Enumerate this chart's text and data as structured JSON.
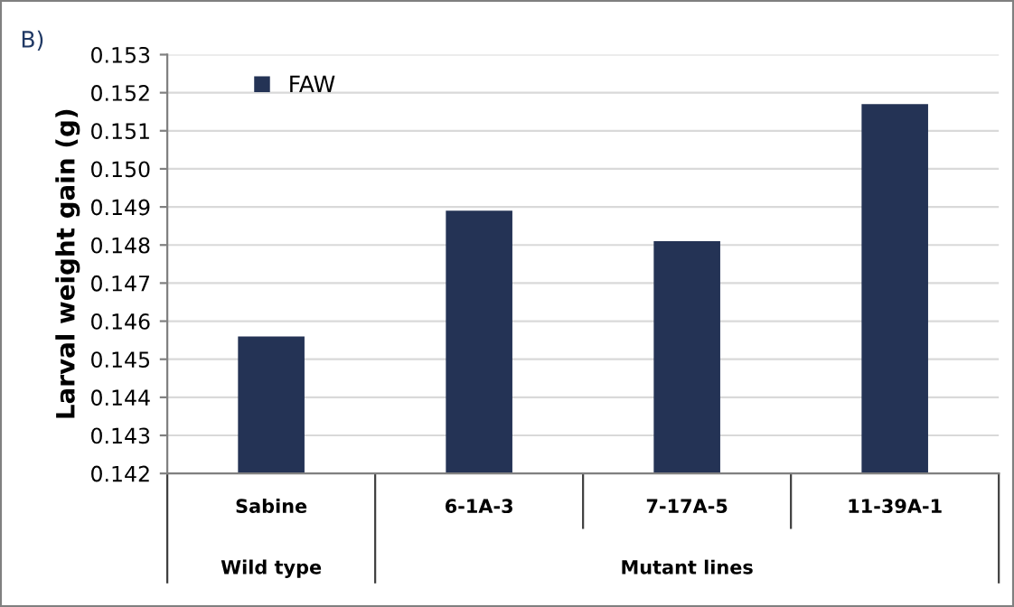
{
  "chart_data": {
    "type": "bar",
    "title": "B)",
    "ylabel": "Larval weight gain (g)",
    "categories": [
      "Sabine",
      "6-1A-3",
      "7-17A-5",
      "11-39A-1"
    ],
    "series": [
      {
        "name": "FAW",
        "color": "#243355",
        "values": [
          0.1456,
          0.1489,
          0.1481,
          0.1517
        ]
      }
    ],
    "ylim": [
      0.142,
      0.153
    ],
    "yticks": [
      {
        "value": 0.142,
        "label": "0.142"
      },
      {
        "value": 0.143,
        "label": "0.143"
      },
      {
        "value": 0.144,
        "label": "0.144"
      },
      {
        "value": 0.145,
        "label": "0.145"
      },
      {
        "value": 0.146,
        "label": "0.146"
      },
      {
        "value": 0.147,
        "label": "0.147"
      },
      {
        "value": 0.148,
        "label": "0.148"
      },
      {
        "value": 0.149,
        "label": "0.149"
      },
      {
        "value": 0.15,
        "label": "0.150"
      },
      {
        "value": 0.151,
        "label": "0.151"
      },
      {
        "value": 0.152,
        "label": "0.152"
      },
      {
        "value": 0.153,
        "label": "0.153"
      }
    ],
    "annotations": [
      "Wild type",
      "Mutant lines"
    ],
    "grid": "y",
    "legend": "top left"
  }
}
